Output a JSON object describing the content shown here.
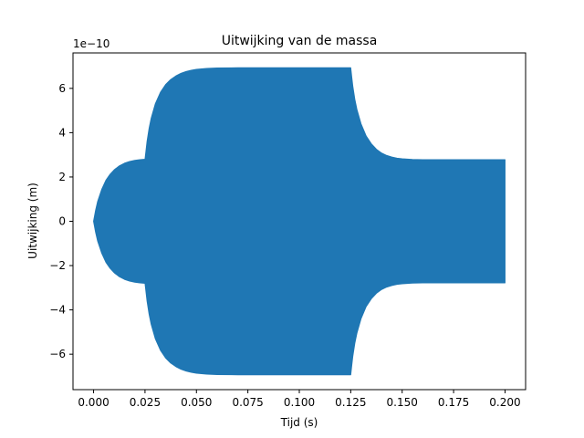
{
  "chart_data": {
    "type": "area",
    "title": "Uitwijking van de massa",
    "xlabel": "Tijd (s)",
    "ylabel": "Uitwijking (m)",
    "y_offset_label": "1e−10",
    "xlim": [
      -0.01,
      0.21
    ],
    "ylim": [
      -7.6,
      7.6
    ],
    "y_scale_factor": 1e-10,
    "grid": false,
    "x_ticks": [
      {
        "value": 0.0,
        "label": "0.000"
      },
      {
        "value": 0.025,
        "label": "0.025"
      },
      {
        "value": 0.05,
        "label": "0.050"
      },
      {
        "value": 0.075,
        "label": "0.075"
      },
      {
        "value": 0.1,
        "label": "0.100"
      },
      {
        "value": 0.125,
        "label": "0.125"
      },
      {
        "value": 0.15,
        "label": "0.150"
      },
      {
        "value": 0.175,
        "label": "0.175"
      },
      {
        "value": 0.2,
        "label": "0.200"
      }
    ],
    "y_ticks": [
      {
        "value": -6,
        "label": "−6"
      },
      {
        "value": -4,
        "label": "−4"
      },
      {
        "value": -2,
        "label": "−2"
      },
      {
        "value": 0,
        "label": "0"
      },
      {
        "value": 2,
        "label": "2"
      },
      {
        "value": 4,
        "label": "4"
      },
      {
        "value": 6,
        "label": "6"
      }
    ],
    "series": [
      {
        "color": "#1f77b4",
        "envelope": {
          "x": [
            0.0,
            0.001,
            0.002,
            0.004,
            0.006,
            0.008,
            0.01,
            0.0125,
            0.015,
            0.0175,
            0.02,
            0.0225,
            0.025,
            0.0255,
            0.026,
            0.027,
            0.028,
            0.03,
            0.0325,
            0.035,
            0.0375,
            0.04,
            0.0425,
            0.045,
            0.0475,
            0.05,
            0.055,
            0.06,
            0.07,
            0.09,
            0.11,
            0.124,
            0.125,
            0.1255,
            0.126,
            0.127,
            0.128,
            0.13,
            0.1325,
            0.135,
            0.1375,
            0.14,
            0.1425,
            0.145,
            0.1475,
            0.15,
            0.155,
            0.16,
            0.18,
            0.2
          ],
          "upper": [
            0.0,
            0.5,
            0.9,
            1.45,
            1.85,
            2.12,
            2.32,
            2.5,
            2.62,
            2.7,
            2.75,
            2.78,
            2.8,
            3.2,
            3.6,
            4.2,
            4.65,
            5.3,
            5.82,
            6.17,
            6.4,
            6.56,
            6.68,
            6.76,
            6.82,
            6.86,
            6.9,
            6.92,
            6.93,
            6.93,
            6.93,
            6.93,
            6.93,
            6.5,
            6.1,
            5.5,
            5.05,
            4.4,
            3.85,
            3.5,
            3.25,
            3.08,
            2.97,
            2.9,
            2.85,
            2.82,
            2.79,
            2.78,
            2.78,
            2.78
          ],
          "lower": [
            0.0,
            -0.5,
            -0.9,
            -1.45,
            -1.85,
            -2.12,
            -2.32,
            -2.5,
            -2.62,
            -2.7,
            -2.75,
            -2.78,
            -2.8,
            -3.2,
            -3.6,
            -4.2,
            -4.65,
            -5.3,
            -5.82,
            -6.17,
            -6.4,
            -6.56,
            -6.68,
            -6.76,
            -6.82,
            -6.86,
            -6.9,
            -6.92,
            -6.93,
            -6.93,
            -6.93,
            -6.93,
            -6.93,
            -6.5,
            -6.1,
            -5.5,
            -5.05,
            -4.4,
            -3.85,
            -3.5,
            -3.25,
            -3.08,
            -2.97,
            -2.9,
            -2.85,
            -2.82,
            -2.79,
            -2.78,
            -2.78,
            -2.78
          ]
        }
      }
    ]
  }
}
